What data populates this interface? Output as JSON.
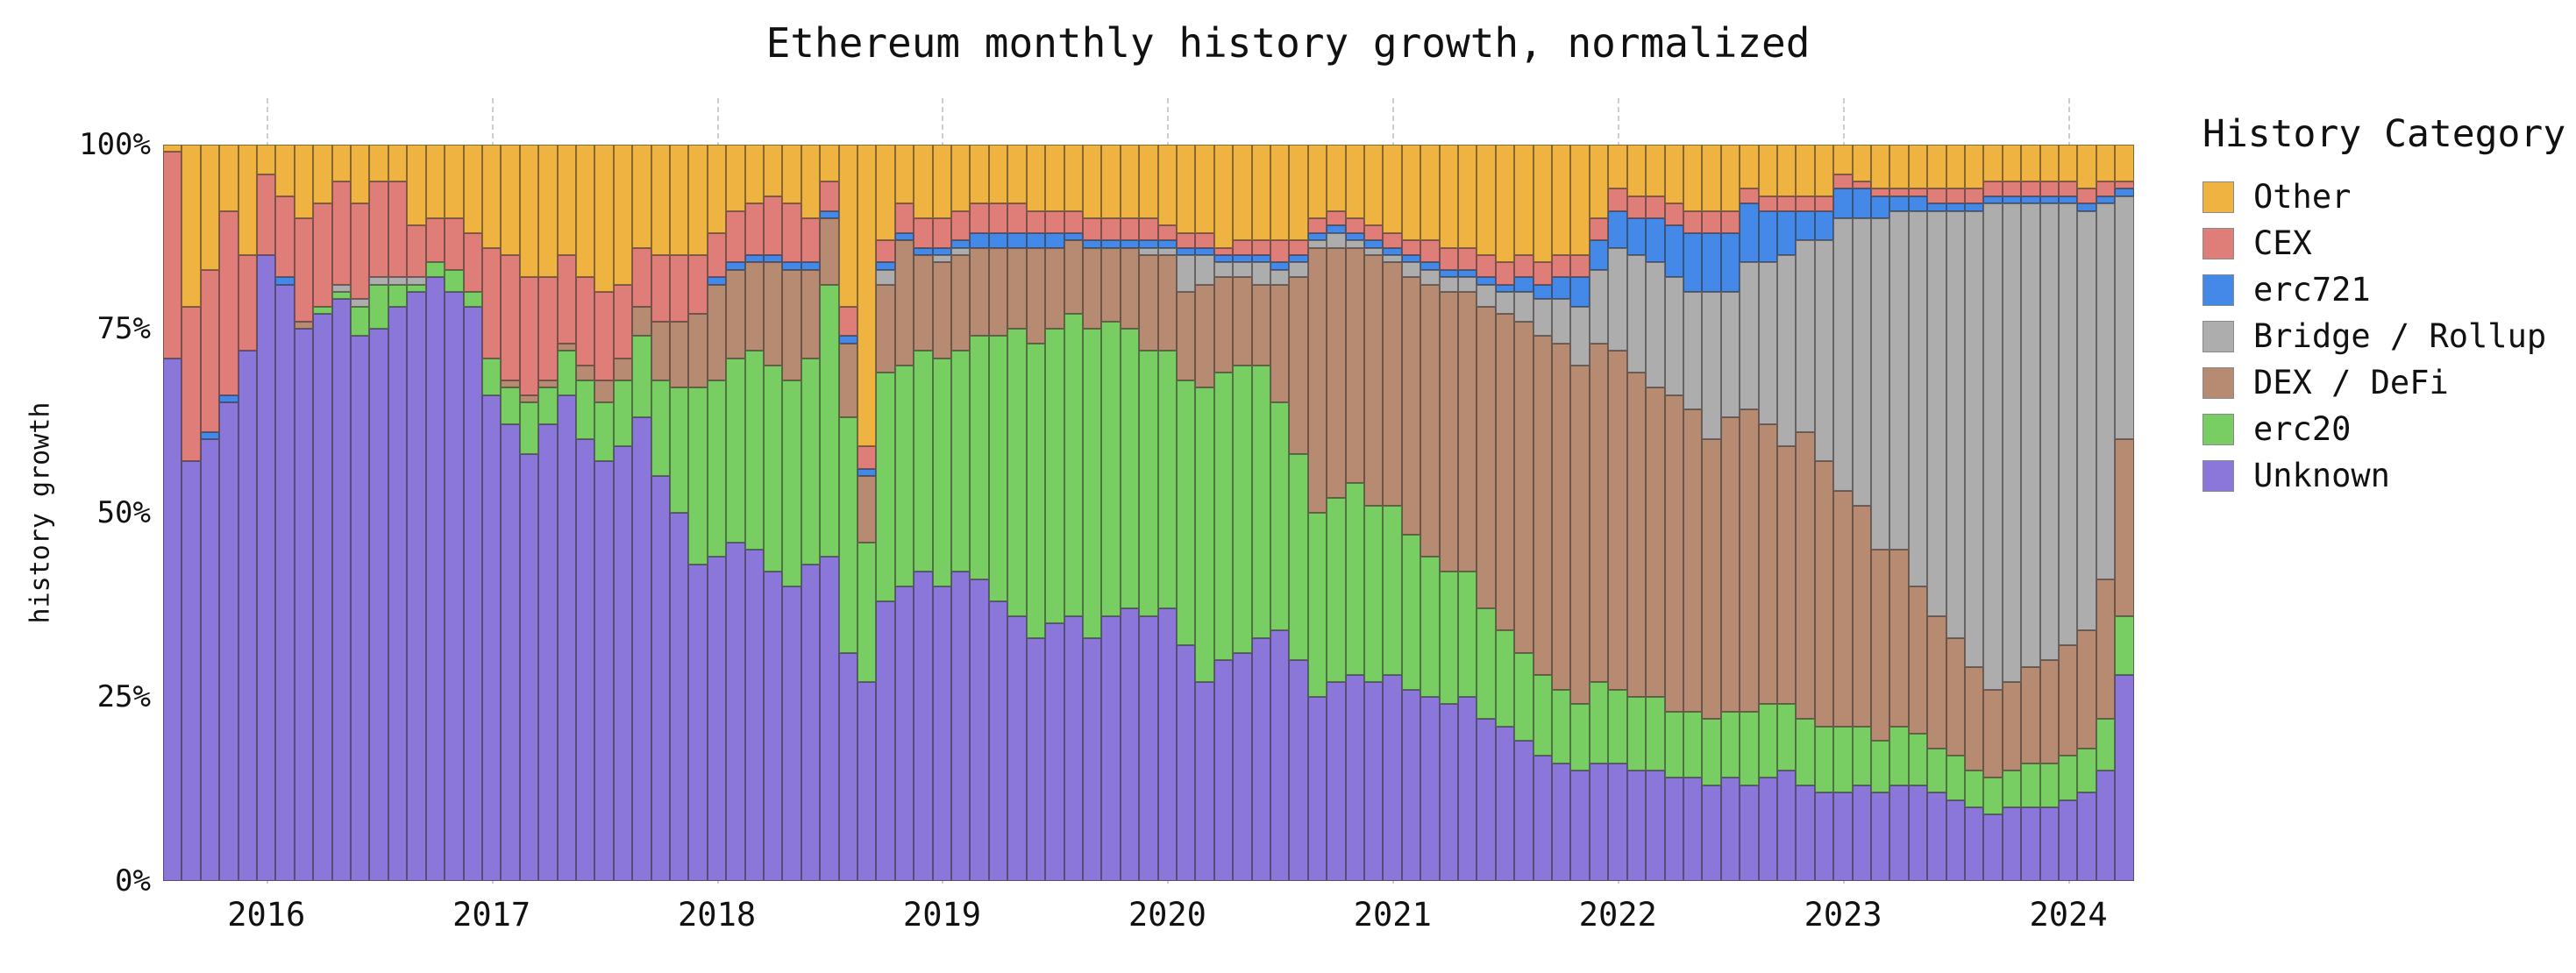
{
  "title": "Ethereum monthly history growth, normalized",
  "y_axis": {
    "label": "history growth",
    "ticks": [
      {
        "label": "100%",
        "value": 100
      },
      {
        "label": "75%",
        "value": 75
      },
      {
        "label": "50%",
        "value": 50
      },
      {
        "label": "25%",
        "value": 25
      },
      {
        "label": "0%",
        "value": 0
      }
    ]
  },
  "x_axis": {
    "ticks": [
      {
        "label": "2016",
        "month_index": 5
      },
      {
        "label": "2017",
        "month_index": 17
      },
      {
        "label": "2018",
        "month_index": 29
      },
      {
        "label": "2019",
        "month_index": 41
      },
      {
        "label": "2020",
        "month_index": 53
      },
      {
        "label": "2021",
        "month_index": 65
      },
      {
        "label": "2022",
        "month_index": 77
      },
      {
        "label": "2023",
        "month_index": 89
      },
      {
        "label": "2024",
        "month_index": 101
      }
    ]
  },
  "legend": {
    "title": "History Category"
  },
  "chart_data": {
    "type": "bar",
    "stacked": true,
    "normalized": true,
    "unit": "percent",
    "x_start": "2015-08",
    "x_end": "2024-04",
    "n_months": 105,
    "ylim": [
      0,
      100
    ],
    "grid": "vertical-dashed-at-year-ticks",
    "legend_position": "right",
    "series_bottom_to_top": [
      {
        "name": "Unknown",
        "color": "#8B76D9",
        "values": [
          71,
          57,
          60,
          65,
          72,
          85,
          81,
          75,
          77,
          79,
          74,
          75,
          78,
          80,
          82,
          80,
          78,
          66,
          62,
          58,
          62,
          66,
          60,
          57,
          59,
          63,
          55,
          50,
          43,
          44,
          46,
          45,
          42,
          40,
          43,
          44,
          31,
          27,
          38,
          40,
          42,
          40,
          42,
          41,
          38,
          36,
          33,
          35,
          36,
          33,
          36,
          37,
          36,
          37,
          32,
          27,
          30,
          31,
          33,
          34,
          30,
          25,
          27,
          28,
          27,
          28,
          26,
          25,
          24,
          25,
          22,
          21,
          19,
          17,
          16,
          15,
          16,
          16,
          15,
          15,
          14,
          14,
          13,
          14,
          13,
          14,
          15,
          13,
          12,
          12,
          13,
          12,
          13,
          13,
          12,
          11,
          10,
          9,
          10,
          10,
          10,
          11,
          12,
          15,
          28
        ]
      },
      {
        "name": "erc20",
        "color": "#78CE63",
        "values": [
          0,
          0,
          0,
          0,
          0,
          0,
          0,
          0,
          1,
          1,
          4,
          6,
          3,
          1,
          2,
          3,
          2,
          5,
          5,
          7,
          5,
          6,
          8,
          8,
          9,
          11,
          13,
          17,
          24,
          24,
          25,
          27,
          28,
          28,
          28,
          37,
          32,
          19,
          31,
          30,
          30,
          31,
          30,
          33,
          36,
          39,
          40,
          40,
          41,
          42,
          40,
          38,
          36,
          35,
          36,
          40,
          39,
          39,
          37,
          31,
          28,
          25,
          25,
          26,
          24,
          23,
          21,
          19,
          18,
          17,
          15,
          13,
          12,
          11,
          10,
          9,
          11,
          10,
          10,
          10,
          9,
          9,
          9,
          9,
          10,
          10,
          9,
          9,
          9,
          9,
          8,
          7,
          8,
          7,
          6,
          6,
          5,
          5,
          5,
          6,
          6,
          6,
          6,
          7,
          8
        ]
      },
      {
        "name": "DEX / DeFi",
        "color": "#B68B71",
        "values": [
          0,
          0,
          0,
          0,
          0,
          0,
          0,
          1,
          0,
          0,
          0,
          0,
          0,
          0,
          0,
          0,
          0,
          0,
          1,
          1,
          1,
          1,
          2,
          3,
          3,
          4,
          8,
          9,
          10,
          13,
          12,
          12,
          14,
          15,
          12,
          9,
          10,
          9,
          12,
          17,
          13,
          13,
          13,
          12,
          12,
          11,
          13,
          11,
          10,
          11,
          10,
          11,
          13,
          13,
          12,
          14,
          13,
          12,
          11,
          16,
          24,
          36,
          34,
          32,
          34,
          33,
          35,
          37,
          38,
          38,
          41,
          43,
          45,
          46,
          47,
          46,
          46,
          46,
          44,
          42,
          43,
          41,
          38,
          40,
          41,
          38,
          35,
          39,
          36,
          32,
          30,
          26,
          24,
          20,
          18,
          16,
          14,
          12,
          12,
          13,
          14,
          15,
          16,
          19,
          24
        ]
      },
      {
        "name": "Bridge / Rollup",
        "color": "#ADADAD",
        "values": [
          0,
          0,
          0,
          0,
          0,
          0,
          0,
          0,
          0,
          1,
          1,
          1,
          1,
          1,
          0,
          0,
          0,
          0,
          0,
          0,
          0,
          0,
          0,
          0,
          0,
          0,
          0,
          0,
          0,
          0,
          0,
          0,
          0,
          0,
          0,
          0,
          0,
          0,
          2,
          0,
          0,
          1,
          1,
          0,
          0,
          0,
          0,
          0,
          0,
          0,
          0,
          0,
          1,
          1,
          5,
          4,
          2,
          2,
          3,
          2,
          2,
          1,
          2,
          1,
          1,
          1,
          2,
          2,
          2,
          2,
          3,
          3,
          4,
          5,
          6,
          8,
          10,
          14,
          16,
          17,
          16,
          16,
          20,
          17,
          20,
          22,
          26,
          26,
          30,
          37,
          39,
          45,
          46,
          51,
          55,
          58,
          62,
          66,
          65,
          63,
          62,
          60,
          57,
          51,
          33
        ]
      },
      {
        "name": "erc721",
        "color": "#4489E8",
        "values": [
          0,
          0,
          1,
          1,
          0,
          0,
          1,
          0,
          0,
          0,
          0,
          0,
          0,
          0,
          0,
          0,
          0,
          0,
          0,
          0,
          0,
          0,
          0,
          0,
          0,
          0,
          0,
          0,
          0,
          1,
          1,
          1,
          1,
          1,
          1,
          1,
          1,
          1,
          1,
          1,
          1,
          1,
          1,
          2,
          2,
          2,
          2,
          2,
          1,
          1,
          1,
          1,
          1,
          1,
          1,
          1,
          1,
          1,
          1,
          1,
          1,
          1,
          1,
          1,
          1,
          1,
          1,
          1,
          1,
          1,
          1,
          1,
          2,
          2,
          3,
          4,
          4,
          5,
          5,
          6,
          7,
          8,
          8,
          8,
          8,
          7,
          6,
          4,
          4,
          4,
          4,
          3,
          2,
          2,
          1,
          1,
          1,
          1,
          1,
          1,
          1,
          1,
          1,
          1,
          1
        ]
      },
      {
        "name": "CEX",
        "color": "#DF7D79",
        "values": [
          28,
          21,
          22,
          25,
          13,
          11,
          11,
          14,
          14,
          14,
          13,
          13,
          13,
          7,
          6,
          7,
          8,
          15,
          17,
          16,
          14,
          12,
          12,
          12,
          10,
          8,
          9,
          9,
          8,
          6,
          7,
          7,
          8,
          8,
          6,
          4,
          4,
          3,
          3,
          4,
          4,
          4,
          4,
          4,
          4,
          4,
          3,
          3,
          3,
          3,
          3,
          3,
          3,
          2,
          2,
          2,
          1,
          2,
          2,
          3,
          2,
          2,
          2,
          2,
          2,
          2,
          2,
          3,
          3,
          3,
          3,
          3,
          3,
          3,
          3,
          3,
          3,
          3,
          3,
          3,
          3,
          3,
          3,
          3,
          2,
          2,
          2,
          2,
          2,
          2,
          1,
          1,
          1,
          1,
          2,
          2,
          2,
          2,
          2,
          2,
          2,
          2,
          2,
          2,
          1
        ]
      },
      {
        "name": "Other",
        "color": "#EFB342",
        "values": [
          1,
          22,
          17,
          9,
          15,
          4,
          7,
          10,
          8,
          5,
          8,
          5,
          5,
          11,
          10,
          10,
          12,
          14,
          15,
          18,
          18,
          15,
          18,
          20,
          19,
          14,
          15,
          15,
          15,
          12,
          9,
          8,
          7,
          8,
          10,
          5,
          22,
          41,
          13,
          8,
          10,
          10,
          9,
          8,
          8,
          8,
          9,
          9,
          9,
          10,
          10,
          10,
          10,
          11,
          12,
          12,
          14,
          13,
          13,
          13,
          13,
          10,
          9,
          10,
          11,
          12,
          13,
          13,
          14,
          14,
          15,
          16,
          15,
          16,
          15,
          15,
          10,
          6,
          7,
          7,
          8,
          9,
          9,
          9,
          6,
          7,
          7,
          7,
          7,
          4,
          5,
          6,
          6,
          6,
          6,
          6,
          6,
          5,
          5,
          5,
          5,
          5,
          6,
          5,
          5
        ]
      }
    ]
  }
}
